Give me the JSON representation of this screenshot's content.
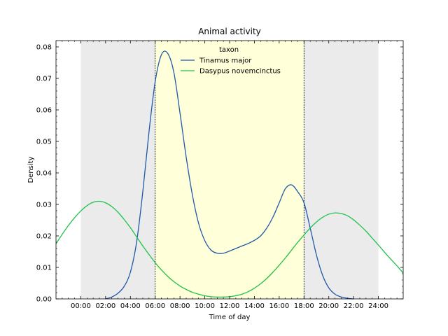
{
  "chart_data": {
    "type": "line",
    "title": "Animal activity",
    "xlabel": "Time of day",
    "ylabel": "Density",
    "xlim": [
      -2,
      26
    ],
    "ylim": [
      0,
      0.082
    ],
    "x_ticks": [
      0,
      2,
      4,
      6,
      8,
      10,
      12,
      14,
      16,
      18,
      20,
      22,
      24
    ],
    "x_tick_labels": [
      "00:00",
      "02:00",
      "04:00",
      "06:00",
      "08:00",
      "10:00",
      "12:00",
      "14:00",
      "16:00",
      "18:00",
      "20:00",
      "22:00",
      "24:00"
    ],
    "y_ticks": [
      0.0,
      0.01,
      0.02,
      0.03,
      0.04,
      0.05,
      0.06,
      0.07,
      0.08
    ],
    "y_tick_labels": [
      "0.00",
      "0.01",
      "0.02",
      "0.03",
      "0.04",
      "0.05",
      "0.06",
      "0.07",
      "0.08"
    ],
    "shaded_regions": [
      {
        "x0": 0,
        "x1": 6,
        "color": "#ebebeb"
      },
      {
        "x0": 6,
        "x1": 18,
        "color": "#ffffd9"
      },
      {
        "x0": 18,
        "x1": 24,
        "color": "#ebebeb"
      }
    ],
    "vlines": [
      6,
      18
    ],
    "legend": {
      "title": "taxon",
      "position": "upper-left-center"
    },
    "series": [
      {
        "name": "Tinamus major",
        "color": "#1f5aa8",
        "x": [
          2.0,
          2.5,
          3.0,
          3.5,
          4.0,
          4.5,
          5.0,
          5.5,
          6.0,
          6.5,
          7.0,
          7.5,
          8.0,
          8.5,
          9.0,
          9.5,
          10.0,
          10.5,
          11.0,
          11.5,
          12.0,
          12.5,
          13.0,
          13.5,
          14.0,
          14.5,
          15.0,
          15.5,
          16.0,
          16.5,
          17.0,
          17.5,
          18.0,
          18.5,
          19.0,
          19.5,
          20.0,
          20.5,
          21.0,
          21.5,
          22.0
        ],
        "y": [
          0.0,
          0.0006,
          0.0018,
          0.004,
          0.0085,
          0.018,
          0.034,
          0.053,
          0.069,
          0.0775,
          0.078,
          0.072,
          0.059,
          0.045,
          0.033,
          0.024,
          0.0185,
          0.0155,
          0.0145,
          0.0145,
          0.0152,
          0.016,
          0.0168,
          0.0176,
          0.0186,
          0.02,
          0.0225,
          0.026,
          0.0305,
          0.035,
          0.0362,
          0.034,
          0.0305,
          0.0225,
          0.014,
          0.0075,
          0.0035,
          0.0015,
          0.0006,
          0.0002,
          0.0
        ]
      },
      {
        "name": "Dasypus novemcinctus",
        "color": "#1ec24a",
        "x": [
          -2.0,
          -1.5,
          -1.0,
          -0.5,
          0.0,
          0.5,
          1.0,
          1.5,
          2.0,
          2.5,
          3.0,
          3.5,
          4.0,
          4.5,
          5.0,
          5.5,
          6.0,
          6.5,
          7.0,
          7.5,
          8.0,
          8.5,
          9.0,
          9.5,
          10.0,
          10.5,
          11.0,
          11.5,
          12.0,
          12.5,
          13.0,
          13.5,
          14.0,
          14.5,
          15.0,
          15.5,
          16.0,
          16.5,
          17.0,
          17.5,
          18.0,
          18.5,
          19.0,
          19.5,
          20.0,
          20.5,
          21.0,
          21.5,
          22.0,
          22.5,
          23.0,
          23.5,
          24.0,
          24.5,
          25.0,
          25.5,
          26.0
        ],
        "y": [
          0.0175,
          0.0205,
          0.0233,
          0.0258,
          0.0279,
          0.0296,
          0.0307,
          0.031,
          0.0305,
          0.0293,
          0.0275,
          0.0252,
          0.0226,
          0.0197,
          0.0168,
          0.0141,
          0.0115,
          0.0092,
          0.0072,
          0.0055,
          0.0041,
          0.003,
          0.0021,
          0.0015,
          0.001,
          0.0007,
          0.0006,
          0.0006,
          0.0007,
          0.001,
          0.0015,
          0.0023,
          0.0034,
          0.0048,
          0.0065,
          0.0085,
          0.0107,
          0.013,
          0.0155,
          0.018,
          0.0203,
          0.0225,
          0.0244,
          0.0259,
          0.0269,
          0.0273,
          0.0271,
          0.0264,
          0.0251,
          0.0234,
          0.0215,
          0.0193,
          0.0171,
          0.0148,
          0.0126,
          0.0105,
          0.0082
        ]
      }
    ]
  }
}
